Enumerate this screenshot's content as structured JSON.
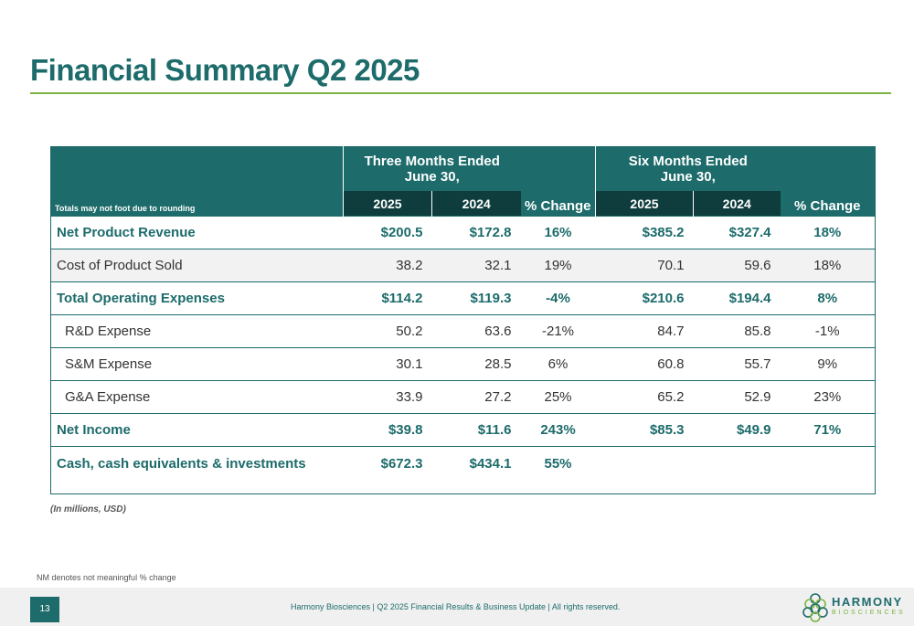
{
  "title": "Financial Summary Q2 2025",
  "table": {
    "rounding_note": "Totals may not foot due to rounding",
    "group1_line1": "Three Months Ended",
    "group1_line2": "June 30,",
    "group2_line1": "Six Months Ended",
    "group2_line2": "June 30,",
    "year_a": "2025",
    "year_b": "2024",
    "pct_label": "% Change",
    "rows": [
      {
        "label": "Net Product Revenue",
        "q25": "$200.5",
        "q24": "$172.8",
        "qpct": "16%",
        "s25": "$385.2",
        "s24": "$327.4",
        "spct": "18%"
      },
      {
        "label": "Cost of Product Sold",
        "q25": "38.2",
        "q24": "32.1",
        "qpct": "19%",
        "s25": "70.1",
        "s24": "59.6",
        "spct": "18%"
      },
      {
        "label": "Total Operating Expenses",
        "q25": "$114.2",
        "q24": "$119.3",
        "qpct": "-4%",
        "s25": "$210.6",
        "s24": "$194.4",
        "spct": "8%"
      },
      {
        "label": "R&D Expense",
        "q25": "50.2",
        "q24": "63.6",
        "qpct": "-21%",
        "s25": "84.7",
        "s24": "85.8",
        "spct": "-1%"
      },
      {
        "label": "S&M Expense",
        "q25": "30.1",
        "q24": "28.5",
        "qpct": "6%",
        "s25": "60.8",
        "s24": "55.7",
        "spct": "9%"
      },
      {
        "label": "G&A Expense",
        "q25": "33.9",
        "q24": "27.2",
        "qpct": "25%",
        "s25": "65.2",
        "s24": "52.9",
        "spct": "23%"
      },
      {
        "label": "Net Income",
        "q25": "$39.8",
        "q24": "$11.6",
        "qpct": "243%",
        "s25": "$85.3",
        "s24": "$49.9",
        "spct": "71%"
      },
      {
        "label": "Cash, cash equivalents & investments",
        "q25": "$672.3",
        "q24": "$434.1",
        "qpct": "55%",
        "s25": "",
        "s24": "",
        "spct": ""
      }
    ]
  },
  "units_note": "(In millions, USD)",
  "nm_note": "NM denotes not meaningful % change",
  "footer": {
    "page_number": "13",
    "text": "Harmony Biosciences | Q2 2025 Financial Results & Business Update | All rights reserved.",
    "logo_name": "HARMONY",
    "logo_sub": "BIOSCIENCES"
  },
  "colors": {
    "primary": "#1d6b6b",
    "dark": "#0f3d3d",
    "accent": "#7cb342",
    "stripe": "#f2f2f2"
  }
}
